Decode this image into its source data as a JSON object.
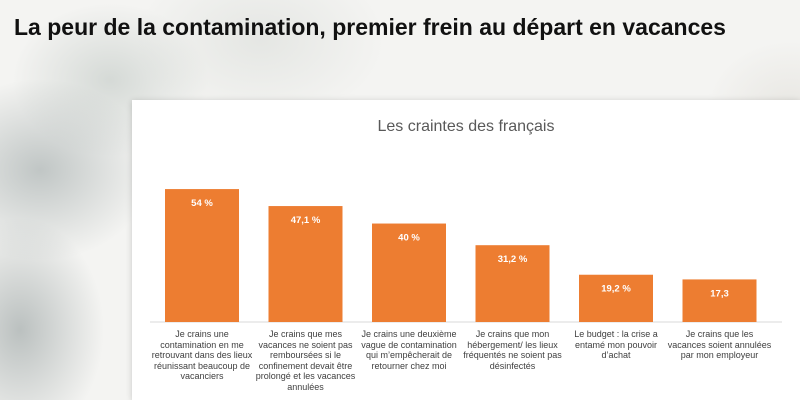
{
  "page": {
    "title": "La peur de la contamination, premier frein au départ en vacances"
  },
  "chart_data": {
    "type": "bar",
    "title": "Les craintes des français",
    "xlabel": "",
    "ylabel": "",
    "ylim": [
      0,
      65
    ],
    "grid": false,
    "legend": "none",
    "bar_color": "#ED7D31",
    "categories": [
      "Je crains une contamination en me retrouvant dans des lieux réunissant beaucoup de vacanciers",
      "Je crains que mes vacances ne soient pas remboursées si le confinement devait être prolongé et les vacances annulées",
      "Je crains une deuxième vague de contamination qui m’empêcherait de retourner chez moi",
      "Je crains que mon hébergement/ les lieux fréquentés ne soient pas désinfectés",
      "Le budget : la crise a entamé mon pouvoir d’achat",
      "Je crains que les vacances soient annulées par mon employeur"
    ],
    "values": [
      54,
      47.1,
      40,
      31.2,
      19.2,
      17.3
    ],
    "data_labels": [
      "54 %",
      "47,1 %",
      "40 %",
      "31,2 %",
      "19,2 %",
      "17,3"
    ]
  }
}
